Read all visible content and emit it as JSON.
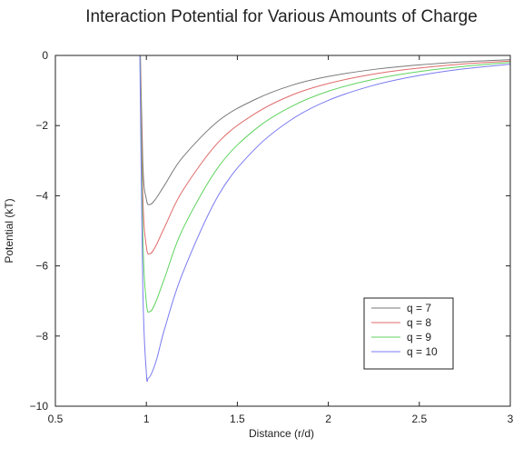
{
  "chart_data": {
    "type": "line",
    "title": "Interaction Potential for Various Amounts of Charge",
    "xlabel": "Distance (r/d)",
    "ylabel": "Potential (kT)",
    "xlim": [
      0.5,
      3
    ],
    "ylim": [
      -10,
      0
    ],
    "x_ticks": [
      0.5,
      1,
      1.5,
      2,
      2.5,
      3
    ],
    "x_tick_labels": [
      "0.5",
      "1",
      "1.5",
      "2",
      "2.5",
      "3"
    ],
    "y_ticks": [
      0,
      -2,
      -4,
      -6,
      -8,
      -10
    ],
    "y_tick_labels": [
      "0",
      "−2",
      "−4",
      "−6",
      "−8",
      "−10"
    ],
    "grid": false,
    "legend_position": "bottom-right",
    "x_min_reference": 0.94,
    "series": [
      {
        "name": "q = 7",
        "color": "#7a7a7a",
        "min_x": 1.02,
        "min_y": -4.25,
        "x": [
          0.96,
          0.98,
          1.0,
          1.02,
          1.05,
          1.1,
          1.2,
          1.4,
          1.6,
          1.8,
          2.0,
          2.25,
          2.5,
          2.75,
          3.0
        ],
        "y": [
          2.0,
          -3.0,
          -4.1,
          -4.25,
          -4.1,
          -3.7,
          -2.9,
          -1.85,
          -1.25,
          -0.85,
          -0.6,
          -0.4,
          -0.27,
          -0.18,
          -0.12
        ]
      },
      {
        "name": "q = 8",
        "color": "#e06a6a",
        "min_x": 1.02,
        "min_y": -5.65,
        "x": [
          0.96,
          0.98,
          1.0,
          1.02,
          1.05,
          1.1,
          1.2,
          1.4,
          1.6,
          1.8,
          2.0,
          2.25,
          2.5,
          2.75,
          3.0
        ],
        "y": [
          2.0,
          -3.9,
          -5.45,
          -5.65,
          -5.45,
          -4.9,
          -3.85,
          -2.45,
          -1.65,
          -1.13,
          -0.8,
          -0.53,
          -0.36,
          -0.24,
          -0.16
        ]
      },
      {
        "name": "q = 9",
        "color": "#5fd35f",
        "min_x": 1.02,
        "min_y": -7.3,
        "x": [
          0.96,
          0.98,
          1.0,
          1.02,
          1.05,
          1.1,
          1.2,
          1.4,
          1.6,
          1.8,
          2.0,
          2.25,
          2.5,
          2.75,
          3.0
        ],
        "y": [
          2.0,
          -5.0,
          -7.05,
          -7.3,
          -7.05,
          -6.35,
          -4.95,
          -3.15,
          -2.1,
          -1.45,
          -1.02,
          -0.68,
          -0.46,
          -0.31,
          -0.2
        ]
      },
      {
        "name": "q = 10",
        "color": "#7a7af0",
        "min_x": 1.01,
        "min_y": -9.2,
        "x": [
          0.96,
          0.98,
          1.0,
          1.01,
          1.03,
          1.06,
          1.1,
          1.2,
          1.4,
          1.6,
          1.8,
          2.0,
          2.25,
          2.5,
          2.75,
          3.0
        ],
        "y": [
          2.0,
          -6.5,
          -9.05,
          -9.2,
          -9.05,
          -8.6,
          -7.8,
          -6.2,
          -3.95,
          -2.65,
          -1.82,
          -1.28,
          -0.85,
          -0.57,
          -0.38,
          -0.25
        ]
      }
    ]
  }
}
